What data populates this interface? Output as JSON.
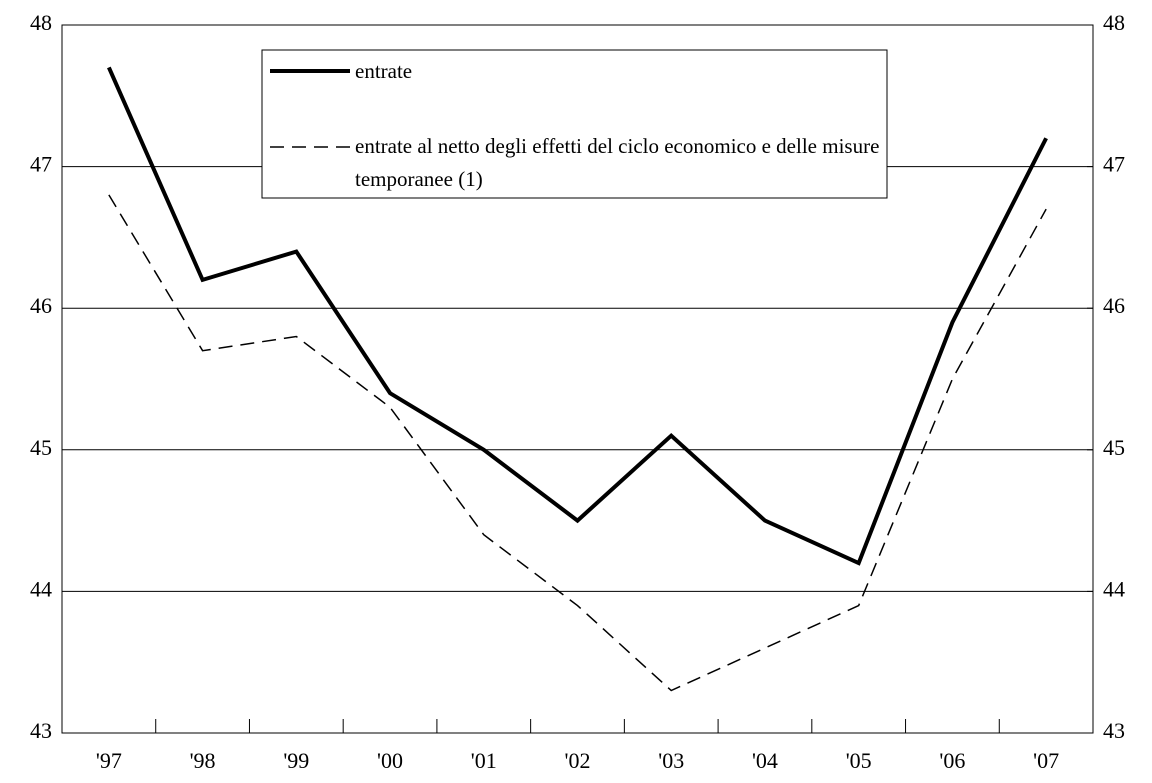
{
  "chart_data": {
    "type": "line",
    "categories": [
      "'97",
      "'98",
      "'99",
      "'00",
      "'01",
      "'02",
      "'03",
      "'04",
      "'05",
      "'06",
      "'07"
    ],
    "series": [
      {
        "name": "entrate",
        "color": "#000000",
        "dash": "solid",
        "values": [
          47.7,
          46.2,
          46.4,
          45.4,
          45.0,
          44.5,
          45.1,
          44.5,
          44.2,
          45.9,
          47.2
        ]
      },
      {
        "name": "entrate al netto degli effetti del ciclo economico e delle misure temporanee (1)",
        "color": "#000000",
        "dash": "dashed",
        "values": [
          46.8,
          45.7,
          45.8,
          45.3,
          44.4,
          43.9,
          43.3,
          43.6,
          43.9,
          45.5,
          46.7
        ]
      }
    ],
    "ylim": [
      43,
      48
    ],
    "yticks": [
      43,
      44,
      45,
      46,
      47,
      48
    ],
    "y2lim": [
      43,
      48
    ],
    "y2ticks": [
      43,
      44,
      45,
      46,
      47,
      48
    ],
    "grid": true
  }
}
